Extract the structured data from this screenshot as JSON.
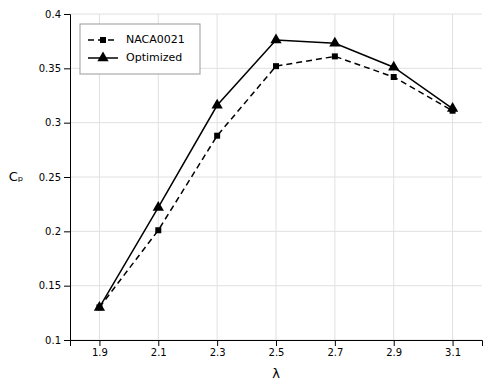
{
  "chart_data": {
    "type": "line",
    "x": [
      1.9,
      2.1,
      2.3,
      2.5,
      2.7,
      2.9,
      3.1
    ],
    "series": [
      {
        "name": "NACA0021",
        "color": "#000000",
        "marker": "square",
        "line_style": "dashed",
        "values": [
          0.13,
          0.201,
          0.288,
          0.352,
          0.361,
          0.342,
          0.311
        ]
      },
      {
        "name": "Optimized",
        "color": "#000000",
        "marker": "triangle",
        "line_style": "solid",
        "values": [
          0.13,
          0.222,
          0.316,
          0.376,
          0.373,
          0.351,
          0.313
        ]
      }
    ],
    "xlabel": "λ",
    "ylabel": "Cₚ",
    "xlim": [
      1.8,
      3.2
    ],
    "ylim": [
      0.1,
      0.4
    ],
    "xticks": [
      1.9,
      2.1,
      2.3,
      2.5,
      2.7,
      2.9,
      3.1
    ],
    "yticks": [
      0.1,
      0.15,
      0.2,
      0.25,
      0.3,
      0.35,
      0.4
    ],
    "grid": true,
    "legend": "upper left"
  }
}
